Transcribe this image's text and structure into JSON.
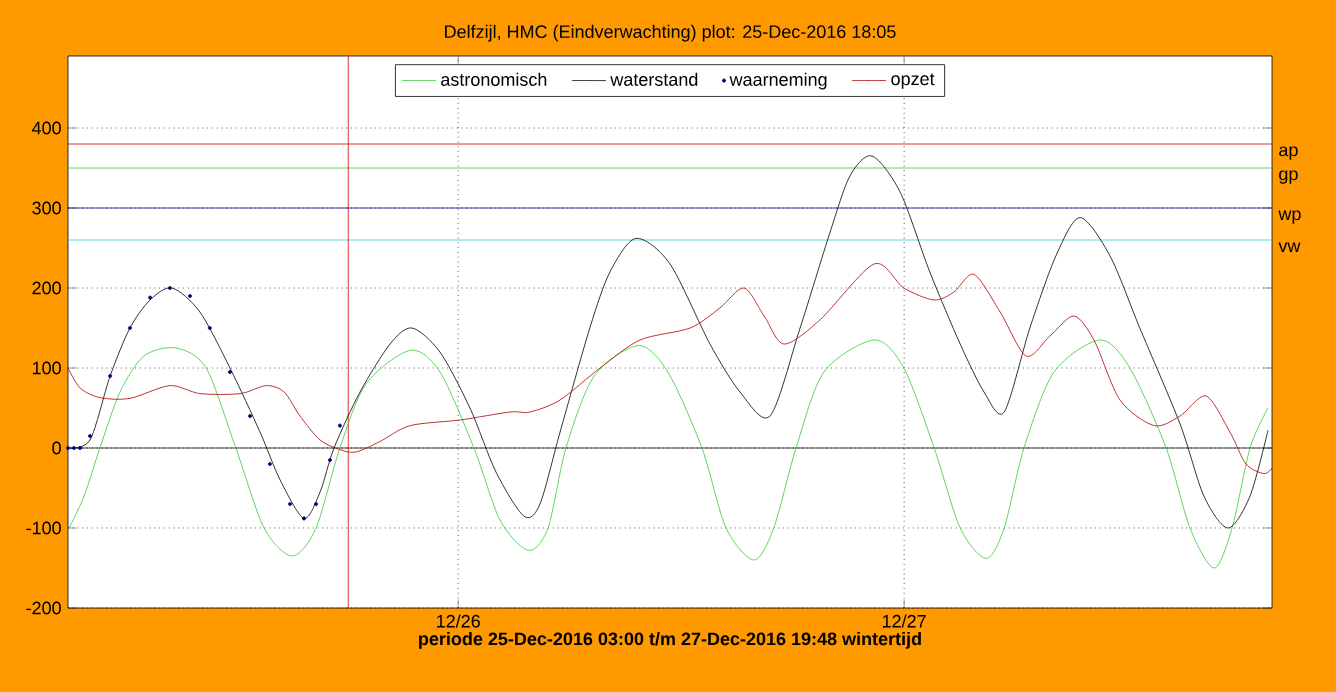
{
  "chart_data": {
    "type": "line",
    "title": "Delfzijl, HMC (Eindverwachting) plot: 25-Dec-2016 18:05",
    "xlabel": "periode 25-Dec-2016 03:00 t/m 27-Dec-2016 19:48 wintertijd",
    "xlim": [
      "2016-12-25T03:00",
      "2016-12-27T19:48"
    ],
    "xticks": [
      {
        "value": "2016-12-26",
        "label": "12/26"
      },
      {
        "value": "2016-12-27",
        "label": "12/27"
      }
    ],
    "ylim": [
      -200,
      490
    ],
    "yticks": [
      -200,
      -100,
      0,
      100,
      200,
      300,
      400
    ],
    "grid": true,
    "legend": "top",
    "series": [
      {
        "name": "astronomisch",
        "color": "#33cc33",
        "x": [
          "2016-12-25T03:00",
          "2016-12-25T03:52",
          "2016-12-25T04:43",
          "2016-12-25T05:48",
          "2016-12-25T07:05",
          "2016-12-25T08:49",
          "2016-12-25T10:26",
          "2016-12-25T12:02",
          "2016-12-25T13:33",
          "2016-12-25T15:04",
          "2016-12-25T16:21",
          "2016-12-25T17:38",
          "2016-12-25T19:02",
          "2016-12-25T21:25",
          "2016-12-25T23:01",
          "2016-12-26T00:51",
          "2016-12-26T02:15",
          "2016-12-26T03:46",
          "2016-12-26T04:50",
          "2016-12-26T05:48",
          "2016-12-26T07:19",
          "2016-12-26T09:41",
          "2016-12-26T11:17",
          "2016-12-26T13:07",
          "2016-12-26T14:25",
          "2016-12-26T15:55",
          "2016-12-26T16:59",
          "2016-12-26T18:11",
          "2016-12-26T19:41",
          "2016-12-26T22:23",
          "2016-12-26T23:59",
          "2016-12-27T01:37",
          "2016-12-27T03:01",
          "2016-12-27T04:25",
          "2016-12-27T05:23",
          "2016-12-27T06:27",
          "2016-12-27T08:04",
          "2016-12-27T10:32",
          "2016-12-27T12:09",
          "2016-12-27T14:06",
          "2016-12-27T15:23",
          "2016-12-27T16:41",
          "2016-12-27T17:39",
          "2016-12-27T18:37",
          "2016-12-27T19:35"
        ],
        "values": [
          -103,
          -60,
          0,
          70,
          115,
          125,
          100,
          0,
          -100,
          -135,
          -100,
          0,
          80,
          122,
          95,
          0,
          -90,
          -128,
          -100,
          0,
          90,
          128,
          95,
          0,
          -100,
          -140,
          -100,
          0,
          95,
          135,
          100,
          0,
          -100,
          -138,
          -100,
          0,
          95,
          135,
          100,
          0,
          -100,
          -150,
          -100,
          0,
          50
        ]
      },
      {
        "name": "waterstand",
        "color": "#000000",
        "x": [
          "2016-12-25T03:00",
          "2016-12-25T04:11",
          "2016-12-25T05:16",
          "2016-12-25T06:20",
          "2016-12-25T07:25",
          "2016-12-25T08:36",
          "2016-12-25T10:06",
          "2016-12-25T11:43",
          "2016-12-25T13:20",
          "2016-12-25T14:25",
          "2016-12-25T15:42",
          "2016-12-25T16:34",
          "2016-12-25T17:19",
          "2016-12-25T18:43",
          "2016-12-25T20:20",
          "2016-12-25T21:31",
          "2016-12-25T23:01",
          "2016-12-26T00:38",
          "2016-12-26T02:02",
          "2016-12-26T03:32",
          "2016-12-26T04:24",
          "2016-12-26T05:29",
          "2016-12-26T07:05",
          "2016-12-26T08:10",
          "2016-12-26T09:34",
          "2016-12-26T11:24",
          "2016-12-26T13:33",
          "2016-12-26T15:10",
          "2016-12-26T16:47",
          "2016-12-26T18:24",
          "2016-12-26T20:01",
          "2016-12-26T21:05",
          "2016-12-26T22:16",
          "2016-12-26T23:47",
          "2016-12-27T01:23",
          "2016-12-27T03:01",
          "2016-12-27T04:18",
          "2016-12-27T05:23",
          "2016-12-27T06:46",
          "2016-12-27T08:10",
          "2016-12-27T09:28",
          "2016-12-27T11:05",
          "2016-12-27T12:41",
          "2016-12-27T14:51",
          "2016-12-27T16:08",
          "2016-12-27T17:26",
          "2016-12-27T18:37",
          "2016-12-27T19:35"
        ],
        "values": [
          0,
          10,
          90,
          150,
          185,
          200,
          170,
          100,
          20,
          -40,
          -88,
          -55,
          0,
          70,
          130,
          150,
          120,
          50,
          -30,
          -85,
          -70,
          20,
          150,
          220,
          262,
          230,
          130,
          70,
          40,
          150,
          270,
          340,
          365,
          320,
          220,
          130,
          70,
          45,
          150,
          240,
          288,
          240,
          150,
          30,
          -60,
          -100,
          -60,
          22
        ]
      },
      {
        "name": "waarneming",
        "color": "#000080",
        "type": "scatter",
        "marker": "circle",
        "x": [
          "2016-12-25T03:00",
          "2016-12-25T03:19",
          "2016-12-25T03:39",
          "2016-12-25T04:11",
          "2016-12-25T05:16",
          "2016-12-25T06:20",
          "2016-12-25T07:25",
          "2016-12-25T08:29",
          "2016-12-25T09:34",
          "2016-12-25T10:38",
          "2016-12-25T11:43",
          "2016-12-25T12:48",
          "2016-12-25T13:52",
          "2016-12-25T14:57",
          "2016-12-25T15:42",
          "2016-12-25T16:21",
          "2016-12-25T17:06",
          "2016-12-25T17:38"
        ],
        "values": [
          0,
          0,
          0,
          15,
          90,
          150,
          188,
          200,
          190,
          150,
          95,
          40,
          -20,
          -70,
          -88,
          -70,
          -15,
          28
        ]
      },
      {
        "name": "opzet",
        "color": "#b00000",
        "x": [
          "2016-12-25T03:00",
          "2016-12-25T03:39",
          "2016-12-25T04:43",
          "2016-12-25T06:20",
          "2016-12-25T08:29",
          "2016-12-25T10:06",
          "2016-12-25T12:16",
          "2016-12-25T13:40",
          "2016-12-25T14:38",
          "2016-12-25T15:29",
          "2016-12-25T16:34",
          "2016-12-25T17:38",
          "2016-12-25T18:30",
          "2016-12-25T19:47",
          "2016-12-25T21:25",
          "2016-12-26T00:06",
          "2016-12-26T02:47",
          "2016-12-26T03:52",
          "2016-12-26T05:29",
          "2016-12-26T07:38",
          "2016-12-26T09:47",
          "2016-12-26T12:29",
          "2016-12-26T14:05",
          "2016-12-26T15:23",
          "2016-12-26T16:28",
          "2016-12-26T17:32",
          "2016-12-26T19:28",
          "2016-12-26T22:23",
          "2016-12-26T23:59",
          "2016-12-27T01:37",
          "2016-12-27T02:41",
          "2016-12-27T03:46",
          "2016-12-27T05:10",
          "2016-12-27T06:34",
          "2016-12-27T07:51",
          "2016-12-27T09:08",
          "2016-12-27T10:13",
          "2016-12-27T11:37",
          "2016-12-27T13:27",
          "2016-12-27T14:51",
          "2016-12-27T16:15",
          "2016-12-27T17:32",
          "2016-12-27T18:24",
          "2016-12-27T19:22",
          "2016-12-27T19:48"
        ],
        "values": [
          100,
          75,
          63,
          62,
          78,
          68,
          68,
          78,
          70,
          40,
          10,
          -2,
          -5,
          8,
          28,
          35,
          45,
          45,
          60,
          100,
          135,
          150,
          175,
          200,
          165,
          130,
          160,
          230,
          200,
          185,
          195,
          217,
          170,
          115,
          140,
          165,
          135,
          60,
          28,
          40,
          65,
          20,
          -20,
          -32,
          -25
        ]
      }
    ],
    "ref_lines": [
      {
        "axis": "y",
        "value": 380,
        "label": "ap",
        "color": "#cc0000"
      },
      {
        "axis": "y",
        "value": 350,
        "label": "gp",
        "color": "#33cc33"
      },
      {
        "axis": "y",
        "value": 300,
        "label": "wp",
        "color": "#000080"
      },
      {
        "axis": "y",
        "value": 260,
        "label": "vw",
        "color": "#33cccc"
      },
      {
        "axis": "y",
        "value": 0,
        "color": "#000000"
      },
      {
        "axis": "x",
        "value": "2016-12-25T18:05",
        "color": "#cc0000"
      }
    ]
  }
}
